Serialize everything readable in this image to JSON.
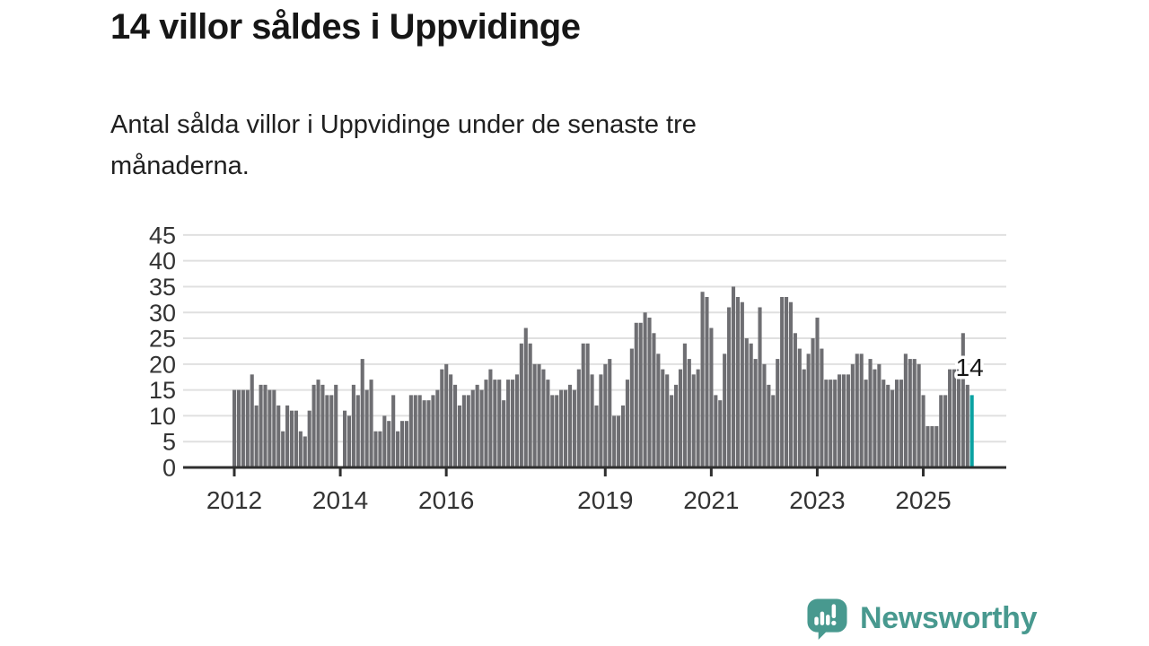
{
  "page": {
    "background": "#ffffff"
  },
  "header": {
    "title": "14 villor såldes i Uppvidinge",
    "subtitle_line1": "Antal sålda villor i Uppvidinge under de senaste tre",
    "subtitle_line2": "månaderna."
  },
  "chart_data": {
    "type": "bar",
    "title": "14 villor såldes i Uppvidinge",
    "xlabel": "",
    "ylabel": "",
    "ylim": [
      0,
      45
    ],
    "y_ticks": [
      0,
      5,
      10,
      15,
      20,
      25,
      30,
      35,
      40,
      45
    ],
    "x_tick_years": [
      2012,
      2014,
      2016,
      2019,
      2021,
      2023,
      2025
    ],
    "x_tick_labels": [
      "2012",
      "2014",
      "2016",
      "2019",
      "2021",
      "2023",
      "2025"
    ],
    "x_start_year": 2012,
    "x_interval": "month",
    "grid": true,
    "legend": "none",
    "bar_color": "#6e6e72",
    "highlight_color": "#0aa2a2",
    "axis_color": "#2f2f2f",
    "gridline_color": "#e0e0e0",
    "tick_label_color": "#333333",
    "missing_indices": [
      24
    ],
    "values": [
      15,
      15,
      15,
      15,
      18,
      12,
      16,
      16,
      15,
      15,
      12,
      7,
      12,
      11,
      11,
      7,
      6,
      11,
      16,
      17,
      16,
      14,
      14,
      16,
      0,
      11,
      10,
      16,
      14,
      21,
      15,
      17,
      7,
      7,
      10,
      9,
      14,
      7,
      9,
      9,
      14,
      14,
      14,
      13,
      13,
      14,
      15,
      19,
      20,
      18,
      16,
      12,
      14,
      14,
      15,
      16,
      15,
      17,
      19,
      17,
      17,
      13,
      17,
      17,
      18,
      24,
      27,
      24,
      20,
      20,
      19,
      17,
      14,
      14,
      15,
      15,
      16,
      15,
      19,
      24,
      24,
      18,
      12,
      18,
      20,
      21,
      10,
      10,
      12,
      17,
      23,
      28,
      28,
      30,
      29,
      26,
      22,
      19,
      18,
      14,
      16,
      19,
      24,
      21,
      18,
      19,
      34,
      33,
      27,
      14,
      13,
      22,
      31,
      35,
      33,
      32,
      25,
      24,
      21,
      31,
      20,
      16,
      14,
      21,
      33,
      33,
      32,
      26,
      23,
      19,
      22,
      25,
      29,
      23,
      17,
      17,
      17,
      18,
      18,
      18,
      20,
      22,
      22,
      17,
      21,
      19,
      20,
      17,
      16,
      15,
      17,
      17,
      22,
      21,
      21,
      20,
      14,
      8,
      8,
      8,
      14,
      14,
      19,
      19,
      19,
      26,
      16,
      14
    ],
    "highlight": {
      "index": 167,
      "value": 14,
      "label": "14"
    }
  },
  "footer": {
    "brand": "Newsworthy",
    "logo_color": "#48998f"
  }
}
